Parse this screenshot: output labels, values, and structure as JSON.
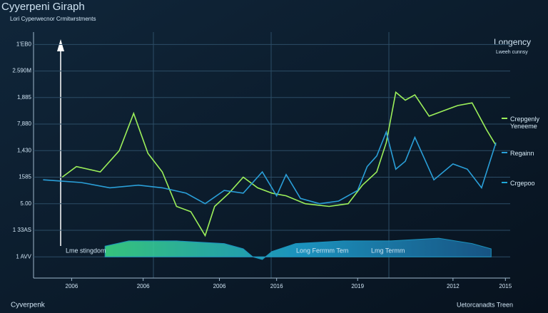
{
  "chart_data": {
    "type": "line",
    "title": "Cyyerpeni Giraph",
    "subtitle": "Lori Cyperwecnor Crmitwrstments",
    "legend_title": "Longency",
    "legend_subtitle": "Lweeh cunnsy",
    "footer_left": "Cyverpenk",
    "footer_right": "Uetorcanadts Treen",
    "annotations": [
      "Lme stingdom",
      "Long Ferrmm Tem",
      "Lmg Termm"
    ],
    "xlim": [
      0,
      100
    ],
    "xticks": [
      {
        "value": 8,
        "label": "2006"
      },
      {
        "value": 23,
        "label": "2006"
      },
      {
        "value": 39,
        "label": "2006"
      },
      {
        "value": 51,
        "label": "2016"
      },
      {
        "value": 68,
        "label": "2019"
      },
      {
        "value": 88,
        "label": "2012"
      },
      {
        "value": 99,
        "label": "2015"
      }
    ],
    "ylim": [
      -0.8,
      8.6
    ],
    "yticks": [
      {
        "value": 8,
        "label": "1'EB0"
      },
      {
        "value": 7,
        "label": "2.590M"
      },
      {
        "value": 6,
        "label": "1,885"
      },
      {
        "value": 5,
        "label": "7,880"
      },
      {
        "value": 4,
        "label": "1,430"
      },
      {
        "value": 3,
        "label": "1585"
      },
      {
        "value": 2,
        "label": "5.00"
      },
      {
        "value": 1,
        "label": "1 33AS"
      },
      {
        "value": 0,
        "label": "1 AVV"
      }
    ],
    "grid": true,
    "series": [
      {
        "name": "Crepgenly Yeneeme",
        "color": "#9cf05a",
        "x": [
          6,
          9,
          14,
          18,
          21,
          24,
          27,
          30,
          33,
          36,
          38,
          41,
          44,
          47,
          50,
          53,
          57,
          62,
          66,
          69,
          72,
          74,
          76,
          78,
          80,
          83,
          86,
          89,
          92,
          95,
          97
        ],
        "values": [
          3.0,
          3.4,
          3.2,
          4.0,
          5.4,
          3.9,
          3.2,
          1.9,
          1.7,
          0.8,
          1.9,
          2.4,
          3.0,
          2.6,
          2.4,
          2.3,
          2.0,
          1.9,
          2.0,
          2.7,
          3.2,
          4.3,
          6.2,
          5.9,
          6.1,
          5.3,
          5.5,
          5.7,
          5.8,
          4.8,
          4.2
        ]
      },
      {
        "name": "Regainn",
        "color": "#2a9fd8",
        "x": [
          2,
          10,
          16,
          22,
          27,
          32,
          36,
          40,
          44,
          48,
          51,
          53,
          56,
          60,
          64,
          68,
          70,
          72,
          74,
          76,
          78,
          80,
          82,
          84,
          88,
          91,
          94,
          97
        ],
        "values": [
          2.9,
          2.8,
          2.6,
          2.7,
          2.6,
          2.4,
          2.0,
          2.5,
          2.4,
          3.2,
          2.3,
          3.1,
          2.2,
          2.0,
          2.1,
          2.5,
          3.4,
          3.8,
          4.7,
          3.3,
          3.6,
          4.5,
          3.7,
          2.9,
          3.5,
          3.3,
          2.6,
          4.3
        ]
      },
      {
        "name": "Crgepoo",
        "color": "#1fa8d8",
        "area": true,
        "x": [
          15,
          20,
          30,
          40,
          44,
          46,
          48,
          50,
          55,
          65,
          75,
          85,
          92,
          96
        ],
        "values": [
          0.4,
          0.6,
          0.6,
          0.5,
          0.3,
          0.0,
          -0.1,
          0.2,
          0.5,
          0.6,
          0.6,
          0.7,
          0.5,
          0.3
        ]
      }
    ]
  }
}
